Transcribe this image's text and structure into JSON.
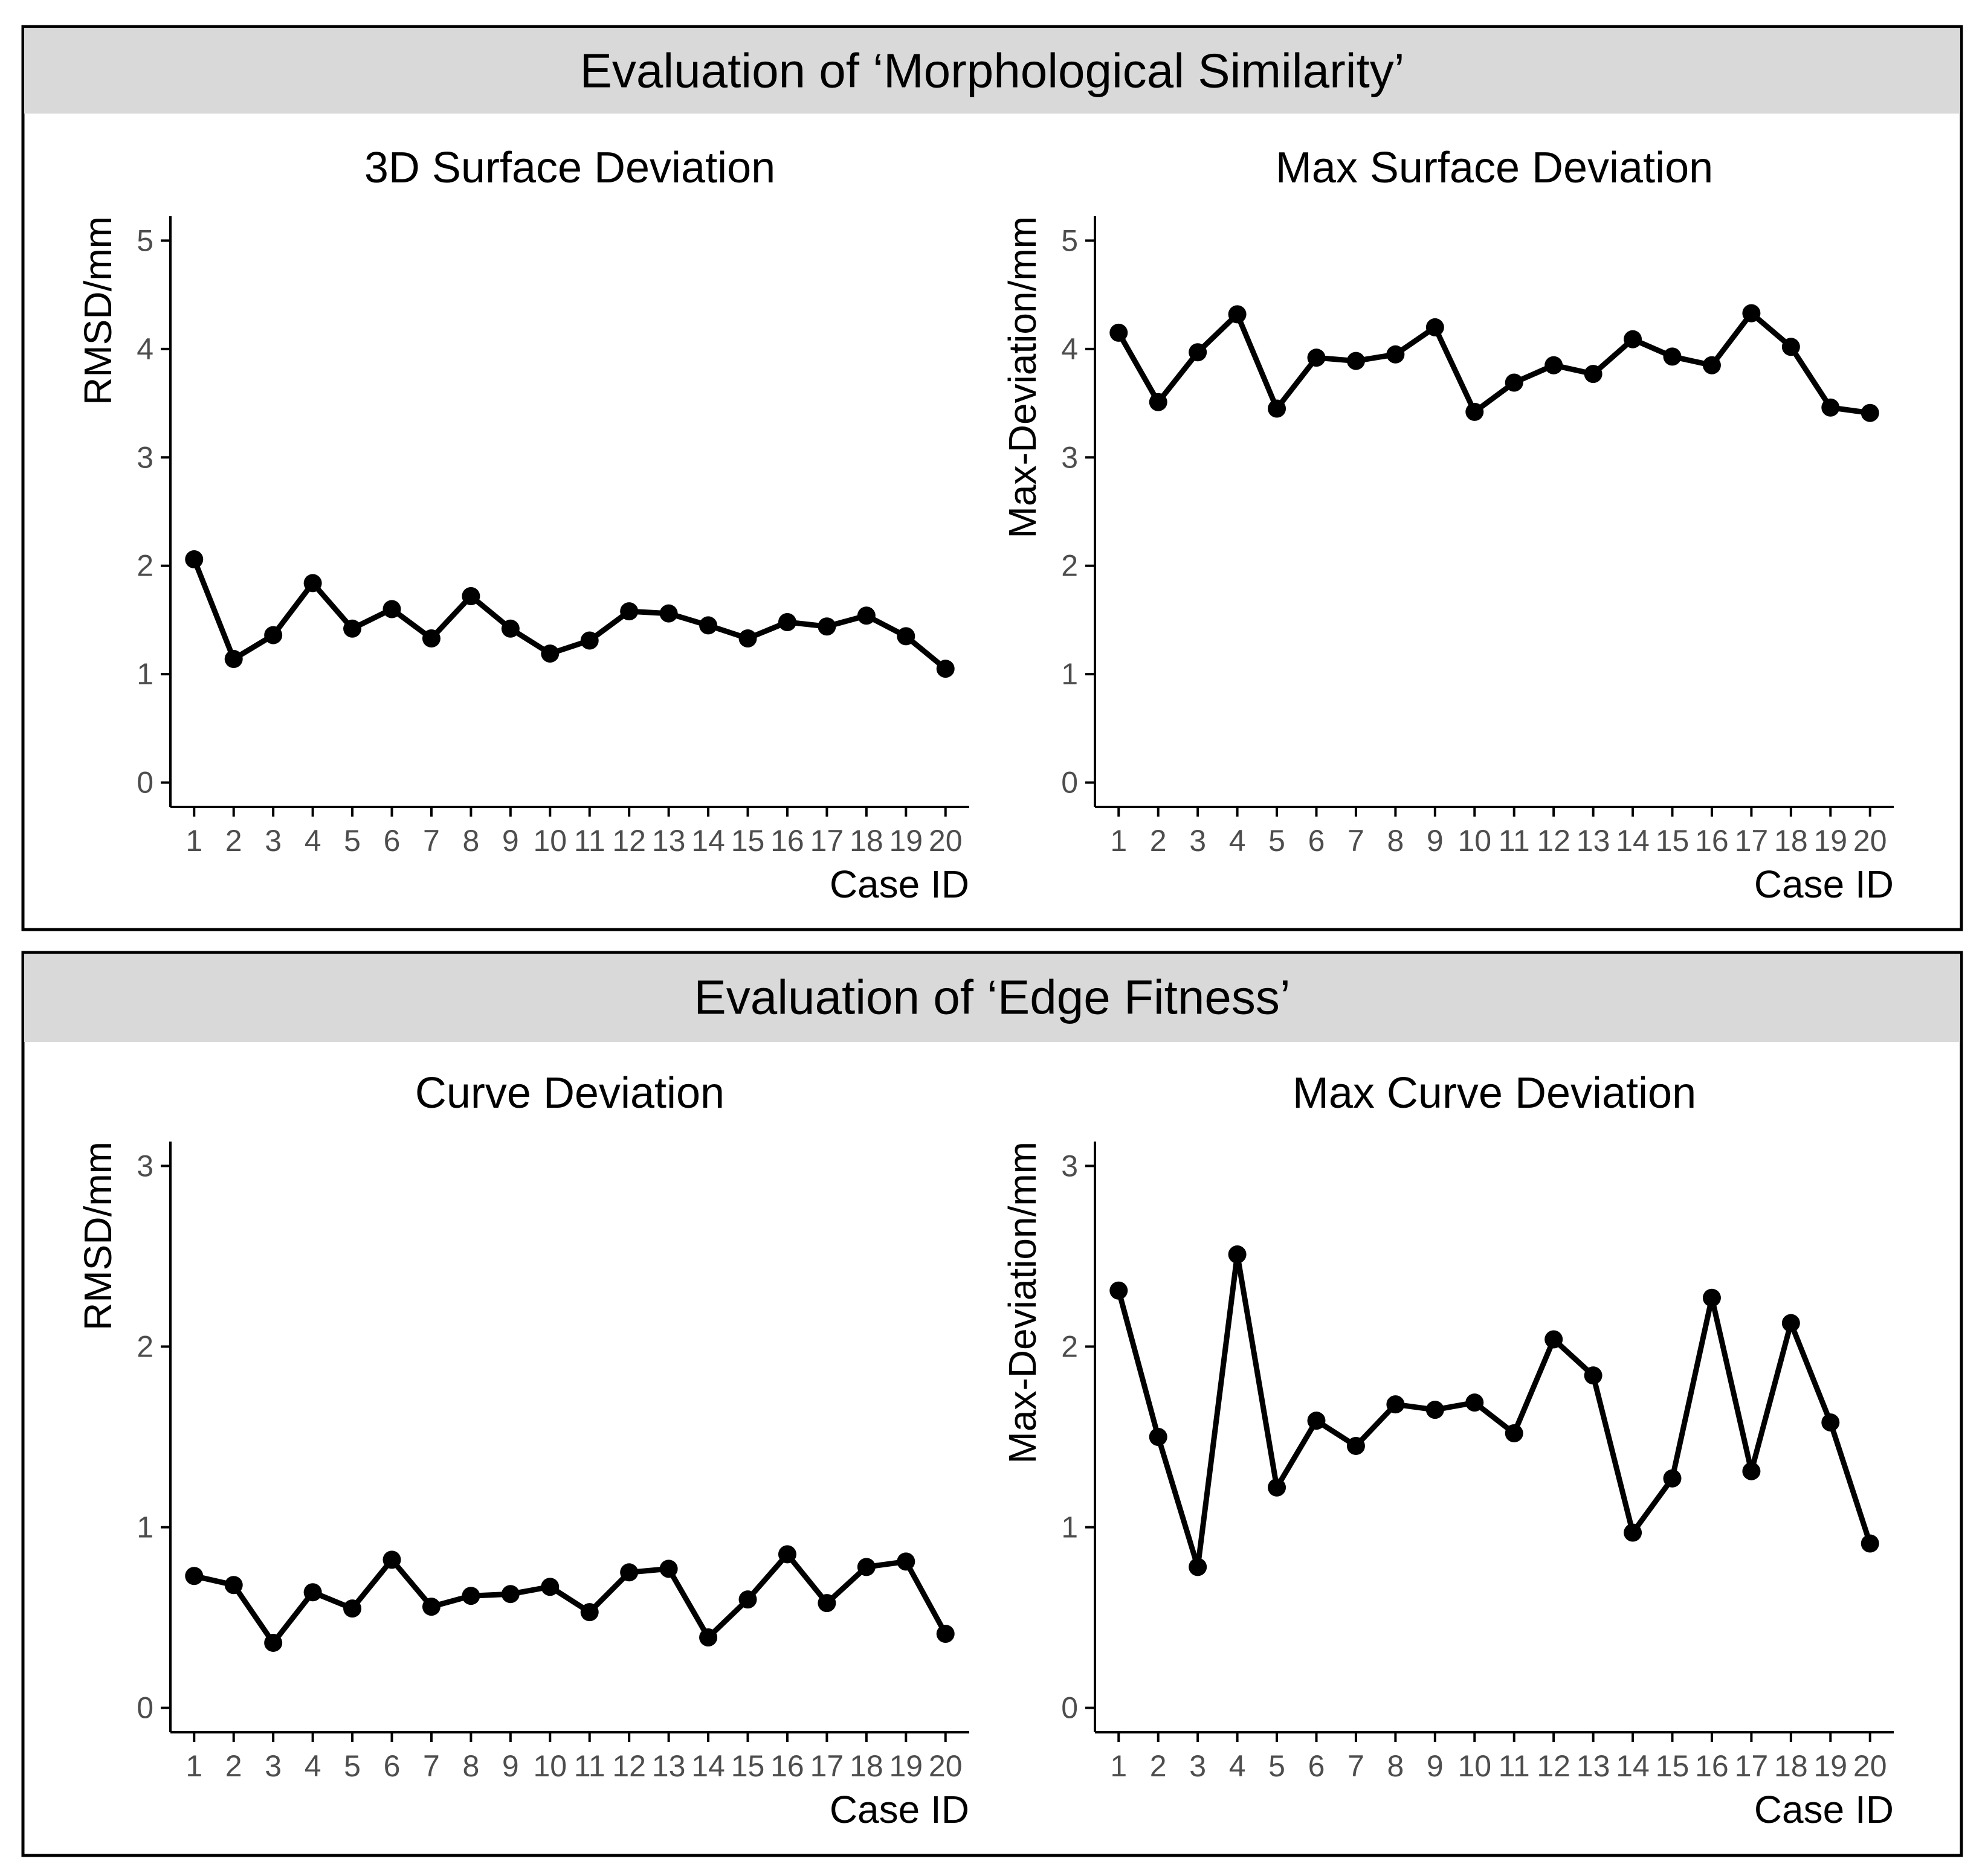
{
  "panels": [
    {
      "title": "Evaluation of ‘Morphological Similarity’"
    },
    {
      "title": "Evaluation of ‘Edge Fitness’"
    }
  ],
  "colors": {
    "strip": "#d9d9d9",
    "border": "#000000",
    "line": "#000000",
    "axis": "#000000",
    "tick_text": "#4d4d4d",
    "text": "#000000",
    "background": "#ffffff"
  },
  "chart_data": [
    {
      "type": "line",
      "panel": "Evaluation of ‘Morphological Similarity’",
      "title": "3D Surface Deviation",
      "xlabel": "Case ID",
      "ylabel": "RMSD/mm",
      "x": [
        1,
        2,
        3,
        4,
        5,
        6,
        7,
        8,
        9,
        10,
        11,
        12,
        13,
        14,
        15,
        16,
        17,
        18,
        19,
        20
      ],
      "x_tick_labels": [
        "1",
        "2",
        "3",
        "4",
        "5",
        "6",
        "7",
        "8",
        "9",
        "10",
        "11",
        "12",
        "13",
        "14",
        "15",
        "16",
        "17",
        "18",
        "19",
        "20"
      ],
      "values": [
        2.06,
        1.14,
        1.36,
        1.84,
        1.42,
        1.6,
        1.33,
        1.72,
        1.42,
        1.19,
        1.31,
        1.58,
        1.56,
        1.45,
        1.33,
        1.48,
        1.44,
        1.54,
        1.35,
        1.05
      ],
      "ylim": [
        0,
        5
      ],
      "y_ticks": [
        0,
        1,
        2,
        3,
        4,
        5
      ],
      "y_tick_labels": [
        "0",
        "1",
        "2",
        "3",
        "4",
        "5"
      ],
      "grid": false,
      "markers": true
    },
    {
      "type": "line",
      "panel": "Evaluation of ‘Morphological Similarity’",
      "title": "Max Surface Deviation",
      "xlabel": "Case ID",
      "ylabel": "Max-Deviation/mm",
      "x": [
        1,
        2,
        3,
        4,
        5,
        6,
        7,
        8,
        9,
        10,
        11,
        12,
        13,
        14,
        15,
        16,
        17,
        18,
        19,
        20
      ],
      "x_tick_labels": [
        "1",
        "2",
        "3",
        "4",
        "5",
        "6",
        "7",
        "8",
        "9",
        "10",
        "11",
        "12",
        "13",
        "14",
        "15",
        "16",
        "17",
        "18",
        "19",
        "20"
      ],
      "values": [
        4.15,
        3.51,
        3.97,
        4.32,
        3.45,
        3.92,
        3.89,
        3.95,
        4.2,
        3.42,
        3.69,
        3.85,
        3.77,
        4.09,
        3.93,
        3.85,
        4.33,
        4.02,
        3.46,
        3.41
      ],
      "ylim": [
        0,
        5
      ],
      "y_ticks": [
        0,
        1,
        2,
        3,
        4,
        5
      ],
      "y_tick_labels": [
        "0",
        "1",
        "2",
        "3",
        "4",
        "5"
      ],
      "grid": false,
      "markers": true
    },
    {
      "type": "line",
      "panel": "Evaluation of ‘Edge Fitness’",
      "title": "Curve Deviation",
      "xlabel": "Case ID",
      "ylabel": "RMSD/mm",
      "x": [
        1,
        2,
        3,
        4,
        5,
        6,
        7,
        8,
        9,
        10,
        11,
        12,
        13,
        14,
        15,
        16,
        17,
        18,
        19,
        20
      ],
      "x_tick_labels": [
        "1",
        "2",
        "3",
        "4",
        "5",
        "6",
        "7",
        "8",
        "9",
        "10",
        "11",
        "12",
        "13",
        "14",
        "15",
        "16",
        "17",
        "18",
        "19",
        "20"
      ],
      "values": [
        0.73,
        0.68,
        0.36,
        0.64,
        0.55,
        0.82,
        0.56,
        0.62,
        0.63,
        0.67,
        0.53,
        0.75,
        0.77,
        0.39,
        0.6,
        0.85,
        0.58,
        0.78,
        0.81,
        0.41
      ],
      "ylim": [
        0,
        3
      ],
      "y_ticks": [
        0,
        1,
        2,
        3
      ],
      "y_tick_labels": [
        "0",
        "1",
        "2",
        "3"
      ],
      "grid": false,
      "markers": true
    },
    {
      "type": "line",
      "panel": "Evaluation of ‘Edge Fitness’",
      "title": "Max Curve Deviation",
      "xlabel": "Case ID",
      "ylabel": "Max-Deviation/mm",
      "x": [
        1,
        2,
        3,
        4,
        5,
        6,
        7,
        8,
        9,
        10,
        11,
        12,
        13,
        14,
        15,
        16,
        17,
        18,
        19,
        20
      ],
      "x_tick_labels": [
        "1",
        "2",
        "3",
        "4",
        "5",
        "6",
        "7",
        "8",
        "9",
        "10",
        "11",
        "12",
        "13",
        "14",
        "15",
        "16",
        "17",
        "18",
        "19",
        "20"
      ],
      "values": [
        2.31,
        1.5,
        0.78,
        2.51,
        1.22,
        1.59,
        1.45,
        1.68,
        1.65,
        1.69,
        1.52,
        2.04,
        1.84,
        0.97,
        1.27,
        2.27,
        1.31,
        2.13,
        1.58,
        0.91
      ],
      "ylim": [
        0,
        3
      ],
      "y_ticks": [
        0,
        1,
        2,
        3
      ],
      "y_tick_labels": [
        "0",
        "1",
        "2",
        "3"
      ],
      "grid": false,
      "markers": true
    }
  ]
}
